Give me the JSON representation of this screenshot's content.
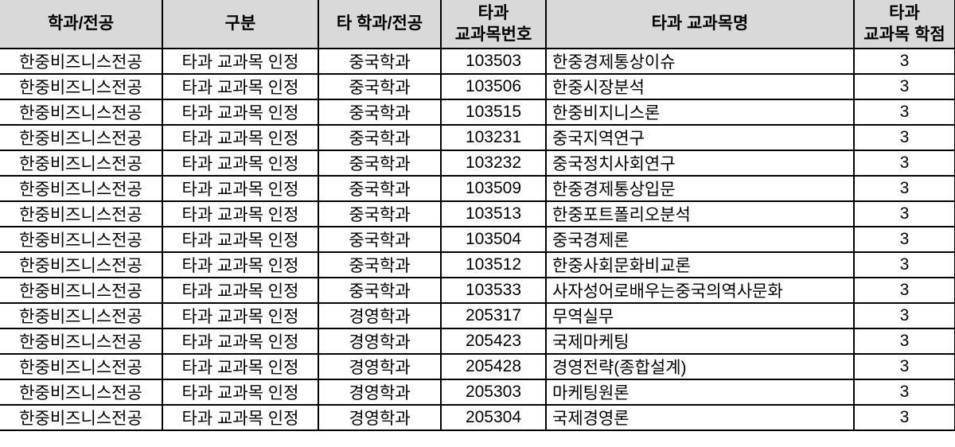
{
  "table": {
    "colors": {
      "header_bg": "#d9d9d9",
      "border": "#000000",
      "row_bg": "#ffffff",
      "text": "#000000"
    },
    "headers": [
      "학과/전공",
      "구분",
      "타 학과/전공",
      "타과\n교과목번호",
      "타과 교과목명",
      "타과\n교과목 학점"
    ],
    "rows": [
      {
        "dept": "한중비즈니스전공",
        "category": "타과 교과목 인정",
        "other_dept": "중국학과",
        "course_no": "103503",
        "course_name": "한중경제통상이슈",
        "credits": "3"
      },
      {
        "dept": "한중비즈니스전공",
        "category": "타과 교과목 인정",
        "other_dept": "중국학과",
        "course_no": "103506",
        "course_name": "한중시장분석",
        "credits": "3"
      },
      {
        "dept": "한중비즈니스전공",
        "category": "타과 교과목 인정",
        "other_dept": "중국학과",
        "course_no": "103515",
        "course_name": "한중비지니스론",
        "credits": "3"
      },
      {
        "dept": "한중비즈니스전공",
        "category": "타과 교과목 인정",
        "other_dept": "중국학과",
        "course_no": "103231",
        "course_name": "중국지역연구",
        "credits": "3"
      },
      {
        "dept": "한중비즈니스전공",
        "category": "타과 교과목 인정",
        "other_dept": "중국학과",
        "course_no": "103232",
        "course_name": "중국정치사회연구",
        "credits": "3"
      },
      {
        "dept": "한중비즈니스전공",
        "category": "타과 교과목 인정",
        "other_dept": "중국학과",
        "course_no": "103509",
        "course_name": "한중경제통상입문",
        "credits": "3"
      },
      {
        "dept": "한중비즈니스전공",
        "category": "타과 교과목 인정",
        "other_dept": "중국학과",
        "course_no": "103513",
        "course_name": "한중포트폴리오분석",
        "credits": "3"
      },
      {
        "dept": "한중비즈니스전공",
        "category": "타과 교과목 인정",
        "other_dept": "중국학과",
        "course_no": "103504",
        "course_name": "중국경제론",
        "credits": "3"
      },
      {
        "dept": "한중비즈니스전공",
        "category": "타과 교과목 인정",
        "other_dept": "중국학과",
        "course_no": "103512",
        "course_name": "한중사회문화비교론",
        "credits": "3"
      },
      {
        "dept": "한중비즈니스전공",
        "category": "타과 교과목 인정",
        "other_dept": "중국학과",
        "course_no": "103533",
        "course_name": "사자성어로배우는중국의역사문화",
        "credits": "3"
      },
      {
        "dept": "한중비즈니스전공",
        "category": "타과 교과목 인정",
        "other_dept": "경영학과",
        "course_no": "205317",
        "course_name": "무역실무",
        "credits": "3"
      },
      {
        "dept": "한중비즈니스전공",
        "category": "타과 교과목 인정",
        "other_dept": "경영학과",
        "course_no": "205423",
        "course_name": "국제마케팅",
        "credits": "3"
      },
      {
        "dept": "한중비즈니스전공",
        "category": "타과 교과목 인정",
        "other_dept": "경영학과",
        "course_no": "205428",
        "course_name": "경영전략(종합설계)",
        "credits": "3"
      },
      {
        "dept": "한중비즈니스전공",
        "category": "타과 교과목 인정",
        "other_dept": "경영학과",
        "course_no": "205303",
        "course_name": "마케팅원론",
        "credits": "3"
      },
      {
        "dept": "한중비즈니스전공",
        "category": "타과 교과목 인정",
        "other_dept": "경영학과",
        "course_no": "205304",
        "course_name": "국제경영론",
        "credits": "3"
      }
    ]
  }
}
